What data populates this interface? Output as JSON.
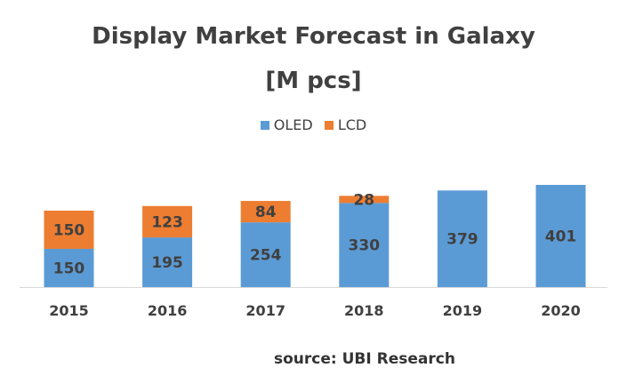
{
  "chart_data": {
    "type": "bar",
    "stacked": true,
    "title": "Display Market Forecast in Galaxy",
    "subtitle": "[M pcs]",
    "categories": [
      "2015",
      "2016",
      "2017",
      "2018",
      "2019",
      "2020"
    ],
    "series": [
      {
        "name": "OLED",
        "color": "#5b9bd5",
        "values": [
          150,
          195,
          254,
          330,
          379,
          401
        ]
      },
      {
        "name": "LCD",
        "color": "#ed7d31",
        "values": [
          150,
          123,
          84,
          28,
          0,
          0
        ]
      }
    ],
    "legend_position": "top",
    "grid": false,
    "ylim": [
      0,
      401
    ],
    "annotation": "source: UBI Research"
  }
}
